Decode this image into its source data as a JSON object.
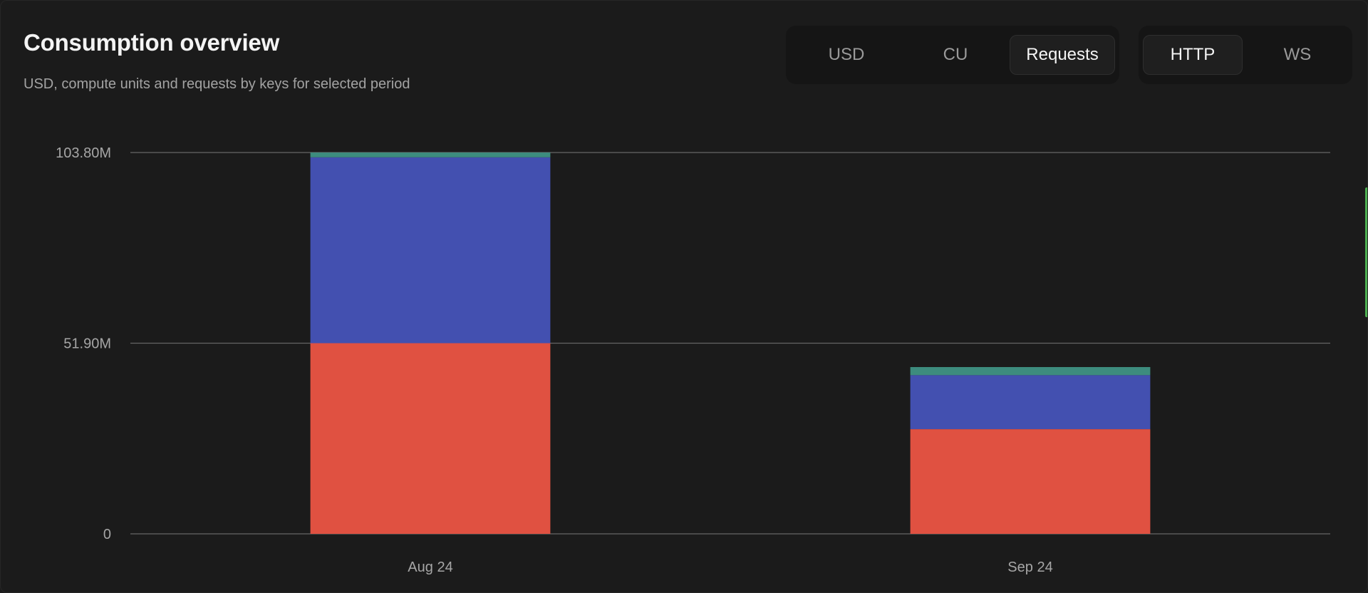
{
  "header": {
    "title": "Consumption overview",
    "subtitle": "USD, compute units and requests by keys for selected period"
  },
  "metric_tabs": [
    {
      "label": "USD",
      "active": false
    },
    {
      "label": "CU",
      "active": false
    },
    {
      "label": "Requests",
      "active": true
    }
  ],
  "protocol_tabs": [
    {
      "label": "HTTP",
      "active": true
    },
    {
      "label": "WS",
      "active": false
    }
  ],
  "chart_data": {
    "type": "bar",
    "stacked": true,
    "categories": [
      "Aug 24",
      "Sep 24"
    ],
    "ytick_labels": [
      "0",
      "51.90M",
      "103.80M"
    ],
    "ylim": [
      0,
      103.8
    ],
    "yticks": [
      0,
      51.9,
      103.8
    ],
    "y_unit": "M",
    "grid": true,
    "series": [
      {
        "color": "#e05141",
        "values": [
          51.9,
          28.5
        ]
      },
      {
        "color": "#4350b0",
        "values": [
          50.6,
          14.7
        ]
      },
      {
        "color": "#3d8c7e",
        "values": [
          1.3,
          2.2
        ]
      }
    ]
  }
}
